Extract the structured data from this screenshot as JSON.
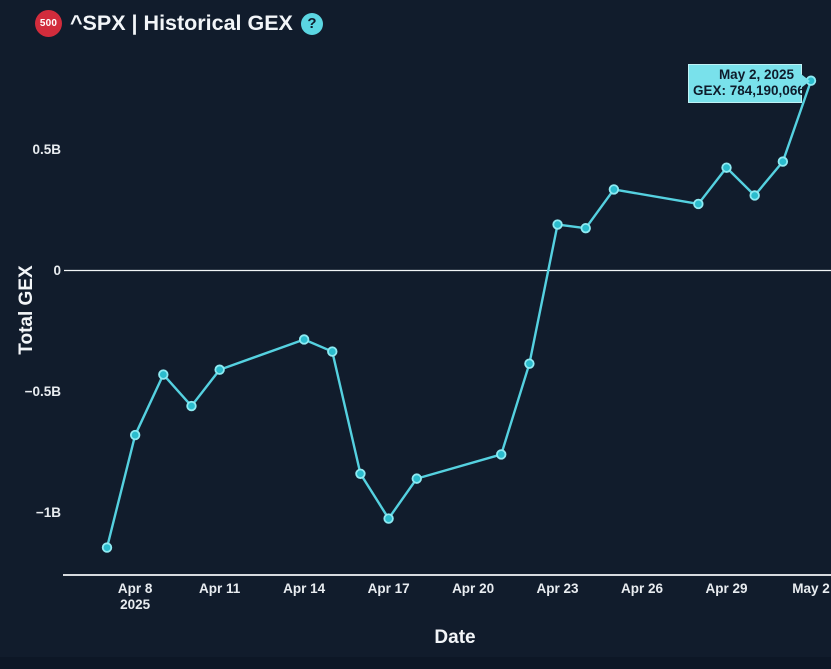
{
  "header": {
    "badge_label": "500",
    "title": "^SPX | Historical GEX",
    "help_label": "?"
  },
  "tooltip": {
    "line1": "May 2, 2025",
    "line2": "GEX: 784,190,066"
  },
  "colors": {
    "background": "#111c2c",
    "series_line": "#55d1e0",
    "marker_fill": "#2bbccd",
    "marker_ring": "#8feaf2",
    "axis_line": "#f2f5f7",
    "tick_text": "#e8ecf0",
    "badge_red": "#d22c3c",
    "help_cyan": "#5bd6e2",
    "tooltip_bg": "#79e1eb",
    "tooltip_text": "#0e1b2b"
  },
  "chart_data": {
    "type": "line",
    "title": "^SPX Historical GEX",
    "xlabel": "Date",
    "ylabel": "Total GEX",
    "y_unit": "billions",
    "ylim": [
      -1.3,
      0.95
    ],
    "grid": "zero-line-only",
    "legend": "none",
    "series_name": "Total GEX",
    "points": [
      {
        "date": "Apr 7, 2025",
        "day": 0,
        "gex_b": -1.145
      },
      {
        "date": "Apr 8, 2025",
        "day": 1,
        "gex_b": -0.68
      },
      {
        "date": "Apr 9, 2025",
        "day": 2,
        "gex_b": -0.43
      },
      {
        "date": "Apr 10, 2025",
        "day": 3,
        "gex_b": -0.56
      },
      {
        "date": "Apr 11, 2025",
        "day": 4,
        "gex_b": -0.41
      },
      {
        "date": "Apr 14, 2025",
        "day": 7,
        "gex_b": -0.285
      },
      {
        "date": "Apr 15, 2025",
        "day": 8,
        "gex_b": -0.335
      },
      {
        "date": "Apr 16, 2025",
        "day": 9,
        "gex_b": -0.84
      },
      {
        "date": "Apr 17, 2025",
        "day": 10,
        "gex_b": -1.025
      },
      {
        "date": "Apr 18, 2025",
        "day": 11,
        "gex_b": -0.86
      },
      {
        "date": "Apr 21, 2025",
        "day": 14,
        "gex_b": -0.76
      },
      {
        "date": "Apr 22, 2025",
        "day": 15,
        "gex_b": -0.385
      },
      {
        "date": "Apr 23, 2025",
        "day": 16,
        "gex_b": 0.19
      },
      {
        "date": "Apr 24, 2025",
        "day": 17,
        "gex_b": 0.175
      },
      {
        "date": "Apr 25, 2025",
        "day": 18,
        "gex_b": 0.335
      },
      {
        "date": "Apr 28, 2025",
        "day": 21,
        "gex_b": 0.275
      },
      {
        "date": "Apr 29, 2025",
        "day": 22,
        "gex_b": 0.425
      },
      {
        "date": "Apr 30, 2025",
        "day": 23,
        "gex_b": 0.31
      },
      {
        "date": "May 1, 2025",
        "day": 24,
        "gex_b": 0.45
      },
      {
        "date": "May 2, 2025",
        "day": 25,
        "gex_b": 0.784190066
      }
    ],
    "y_ticks": [
      {
        "label": "0.5B",
        "value": 0.5
      },
      {
        "label": "0",
        "value": 0
      },
      {
        "label": "−0.5B",
        "value": -0.5
      },
      {
        "label": "−1B",
        "value": -1
      }
    ],
    "x_ticks": [
      {
        "label": "Apr 8",
        "sublabel": "2025",
        "day": 1
      },
      {
        "label": "Apr 11",
        "day": 4
      },
      {
        "label": "Apr 14",
        "day": 7
      },
      {
        "label": "Apr 17",
        "day": 10
      },
      {
        "label": "Apr 20",
        "day": 13
      },
      {
        "label": "Apr 23",
        "day": 16
      },
      {
        "label": "Apr 26",
        "day": 19
      },
      {
        "label": "Apr 29",
        "day": 22
      },
      {
        "label": "May 2",
        "day": 25
      }
    ],
    "highlighted_point": {
      "date": "May 2, 2025",
      "gex": 784190066
    }
  }
}
